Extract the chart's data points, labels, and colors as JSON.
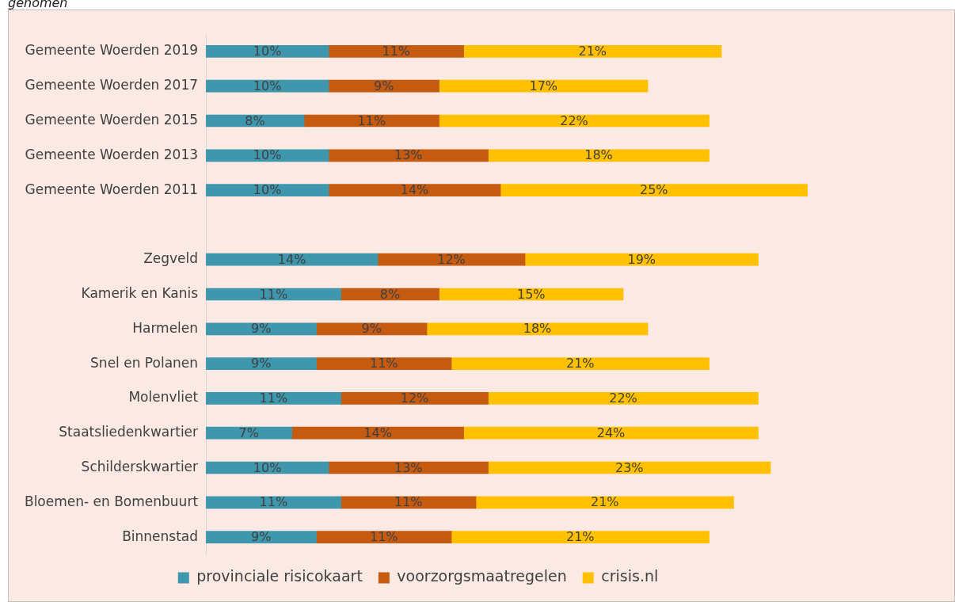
{
  "chart_data": {
    "type": "bar",
    "orientation": "horizontal",
    "stacked": true,
    "title": "genomen",
    "categories": [
      "Gemeente Woerden 2019",
      "Gemeente Woerden 2017",
      "Gemeente Woerden 2015",
      "Gemeente Woerden 2013",
      "Gemeente Woerden 2011",
      null,
      "Zegveld",
      "Kamerik en Kanis",
      "Harmelen",
      "Snel en Polanen",
      "Molenvliet",
      "Staatsliedenkwartier",
      "Schilderskwartier",
      "Bloemen- en Bomenbuurt",
      "Binnenstad"
    ],
    "series": [
      {
        "name": "provinciale risicokaart",
        "color": "#3e97ad",
        "values": [
          10,
          10,
          8,
          10,
          10,
          null,
          14,
          11,
          9,
          9,
          11,
          7,
          10,
          11,
          9
        ],
        "value_labels": [
          "10%",
          "10%",
          "8%",
          "10%",
          "10%",
          null,
          "14%",
          "11%",
          "9%",
          "9%",
          "11%",
          "7%",
          "10%",
          "11%",
          "9%"
        ]
      },
      {
        "name": "voorzorgsmaatregelen",
        "color": "#c55a11",
        "values": [
          11,
          9,
          11,
          13,
          14,
          null,
          12,
          8,
          9,
          11,
          12,
          14,
          13,
          11,
          11
        ],
        "value_labels": [
          "11%",
          "9%",
          "11%",
          "13%",
          "14%",
          null,
          "12%",
          "8%",
          "9%",
          "11%",
          "12%",
          "14%",
          "13%",
          "11%",
          "11%"
        ]
      },
      {
        "name": "crisis.nl",
        "color": "#ffc000",
        "values": [
          21,
          17,
          22,
          18,
          25,
          null,
          19,
          15,
          18,
          21,
          22,
          24,
          23,
          21,
          21
        ],
        "value_labels": [
          "21%",
          "17%",
          "22%",
          "18%",
          "25%",
          null,
          "19%",
          "15%",
          "18%",
          "21%",
          "22%",
          "24%",
          "23%",
          "21%",
          "21%"
        ]
      }
    ],
    "legend": "bottom",
    "tick_labels": "y"
  }
}
